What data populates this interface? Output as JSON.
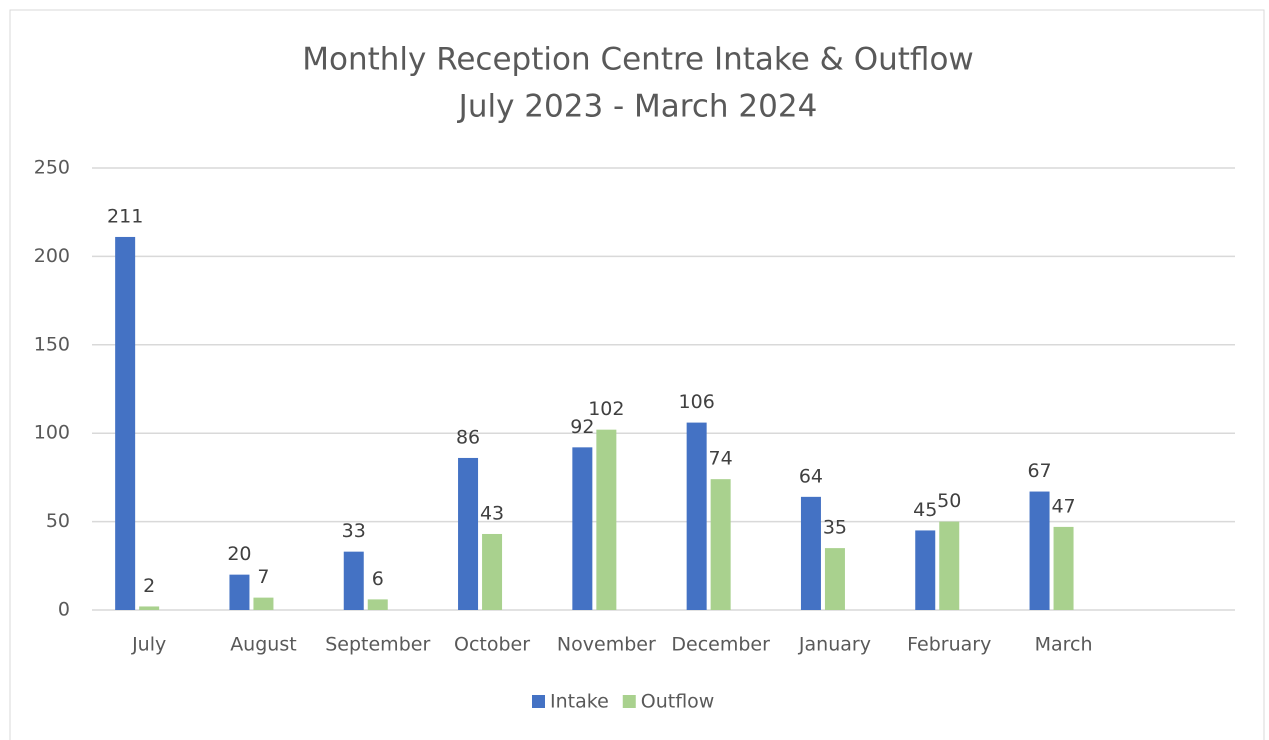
{
  "chart_data": {
    "type": "bar",
    "title": "Monthly Reception Centre Intake & Outflow",
    "subtitle": "July 2023 - March 2024",
    "categories": [
      "July",
      "August",
      "September",
      "October",
      "November",
      "December",
      "January",
      "February",
      "March",
      null
    ],
    "series": [
      {
        "name": "Intake",
        "color": "#4472c4",
        "values": [
          211,
          20,
          33,
          86,
          92,
          106,
          64,
          45,
          67,
          null
        ]
      },
      {
        "name": "Outflow",
        "color": "#a9d18e",
        "values": [
          2,
          7,
          6,
          43,
          102,
          74,
          35,
          50,
          47,
          null
        ]
      }
    ],
    "ylim": [
      0,
      250
    ],
    "yticks": [
      0,
      50,
      100,
      150,
      200,
      250
    ],
    "grid": true,
    "legend": "bottom"
  }
}
